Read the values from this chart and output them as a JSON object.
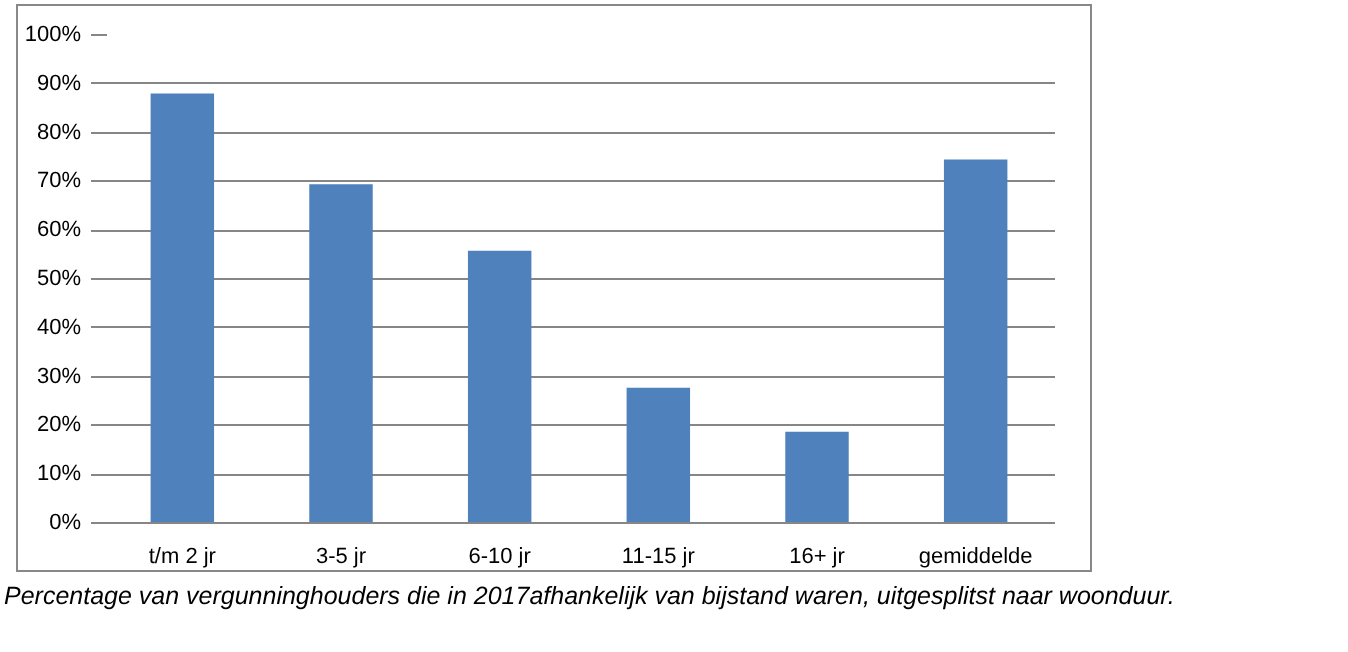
{
  "chart_data": {
    "type": "bar",
    "categories": [
      "t/m 2 jr",
      "3-5 jr",
      "6-10 jr",
      "11-15 jr",
      "16+ jr",
      "gemiddelde"
    ],
    "values": [
      88,
      69.4,
      55.8,
      27.7,
      18.7,
      74.5
    ],
    "color": "#4f81bd",
    "ylim": [
      0,
      100
    ],
    "yticks": [
      {
        "value": 0,
        "label": "0%"
      },
      {
        "value": 10,
        "label": "10%"
      },
      {
        "value": 20,
        "label": "20%"
      },
      {
        "value": 30,
        "label": "30%"
      },
      {
        "value": 40,
        "label": "40%"
      },
      {
        "value": 50,
        "label": "50%"
      },
      {
        "value": 60,
        "label": "60%"
      },
      {
        "value": 70,
        "label": "70%"
      },
      {
        "value": 80,
        "label": "80%"
      },
      {
        "value": 90,
        "label": "90%"
      },
      {
        "value": 100,
        "label": "100%"
      }
    ],
    "grid": "y",
    "annotations": [
      "Percentage van vergunninghouders die in 2017afhankelijk van bijstand waren, uitgesplitst naar woonduur."
    ]
  }
}
